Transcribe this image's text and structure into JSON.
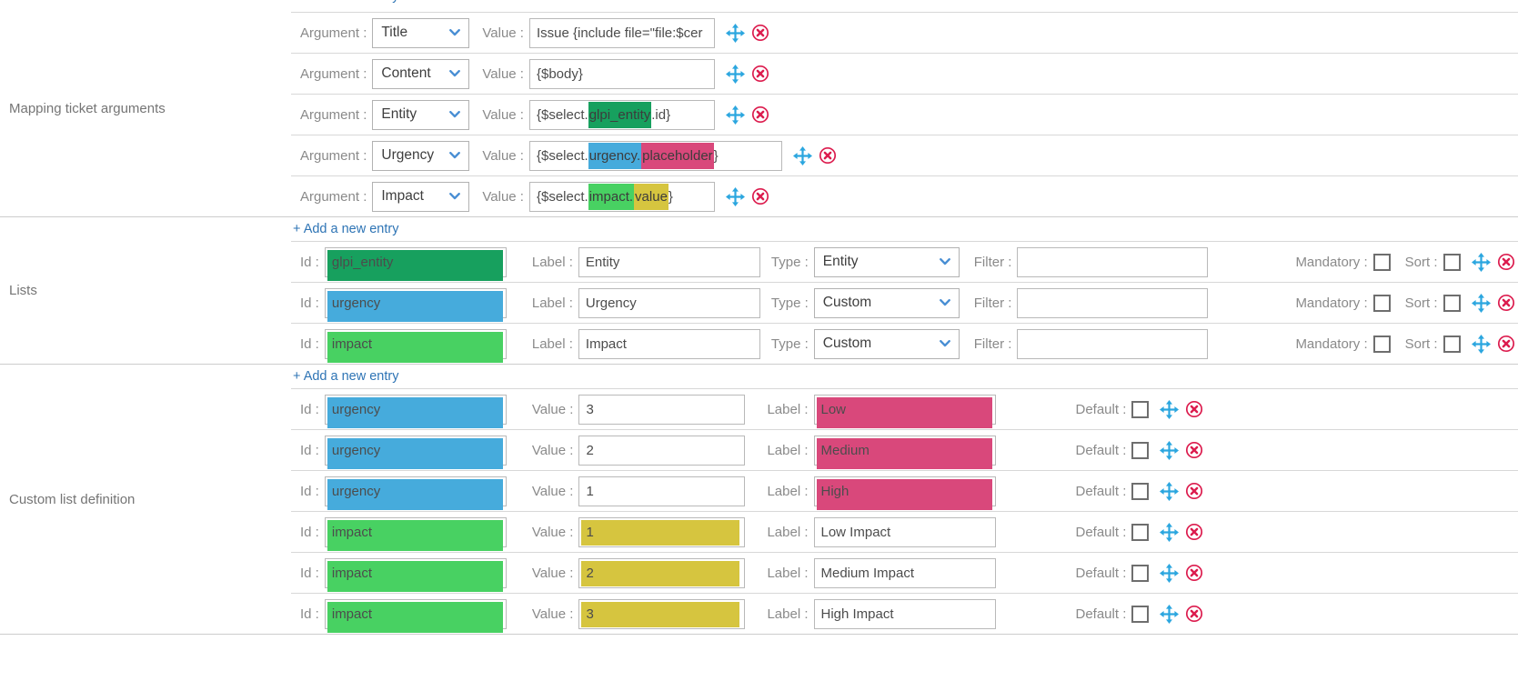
{
  "colors": {
    "green_dark": "#17A05E",
    "blue": "#46ABDC",
    "green_light": "#48D162",
    "pink": "#D9487B",
    "yellow": "#D6C53F",
    "link": "#2E74B5",
    "move_icon": "#2BA6DF",
    "delete_icon": "#DC1C4E",
    "chevron": "#4A8FD4"
  },
  "labels": {
    "argument": "Argument :",
    "value": "Value :",
    "id": "Id :",
    "label": "Label :",
    "type": "Type :",
    "filter": "Filter :",
    "mandatory": "Mandatory :",
    "sort": "Sort :",
    "default": "Default :",
    "add_entry": "+ Add a new entry"
  },
  "sections": {
    "mapping": {
      "title": "Mapping ticket arguments",
      "rows": [
        {
          "argument": "Title",
          "wide": false,
          "segments": [
            {
              "text": "Issue {include file=\"file:$cer",
              "hl": null
            }
          ]
        },
        {
          "argument": "Content",
          "wide": false,
          "segments": [
            {
              "text": "{$body}",
              "hl": null
            }
          ]
        },
        {
          "argument": "Entity",
          "wide": false,
          "segments": [
            {
              "text": "{$select.",
              "hl": null
            },
            {
              "text": "glpi_entity",
              "hl": "green_dark"
            },
            {
              "text": ".id}",
              "hl": null
            }
          ]
        },
        {
          "argument": "Urgency",
          "wide": true,
          "segments": [
            {
              "text": "{$select.",
              "hl": null
            },
            {
              "text": "urgency.",
              "hl": "blue"
            },
            {
              "text": "placeholder",
              "hl": "pink"
            },
            {
              "text": "}",
              "hl": null
            }
          ]
        },
        {
          "argument": "Impact",
          "wide": false,
          "segments": [
            {
              "text": "{$select.",
              "hl": null
            },
            {
              "text": "impact.",
              "hl": "green_light"
            },
            {
              "text": "value",
              "hl": "yellow"
            },
            {
              "text": "}",
              "hl": null
            }
          ]
        }
      ]
    },
    "lists": {
      "title": "Lists",
      "rows": [
        {
          "id": "glpi_entity",
          "id_hl": "green_dark",
          "label": "Entity",
          "type": "Entity",
          "filter": "",
          "mandatory": false,
          "sort": false
        },
        {
          "id": "urgency",
          "id_hl": "blue",
          "label": "Urgency",
          "type": "Custom",
          "filter": "",
          "mandatory": false,
          "sort": false
        },
        {
          "id": "impact",
          "id_hl": "green_light",
          "label": "Impact",
          "type": "Custom",
          "filter": "",
          "mandatory": false,
          "sort": false
        }
      ]
    },
    "custom": {
      "title": "Custom list definition",
      "rows": [
        {
          "id": "urgency",
          "id_hl": "blue",
          "value": "3",
          "value_hl": null,
          "label": "Low",
          "label_hl": "pink",
          "default": false
        },
        {
          "id": "urgency",
          "id_hl": "blue",
          "value": "2",
          "value_hl": null,
          "label": "Medium",
          "label_hl": "pink",
          "default": false
        },
        {
          "id": "urgency",
          "id_hl": "blue",
          "value": "1",
          "value_hl": null,
          "label": "High",
          "label_hl": "pink",
          "default": false
        },
        {
          "id": "impact",
          "id_hl": "green_light",
          "value": "1",
          "value_hl": "yellow",
          "label": "Low Impact",
          "label_hl": null,
          "default": false
        },
        {
          "id": "impact",
          "id_hl": "green_light",
          "value": "2",
          "value_hl": "yellow",
          "label": "Medium Impact",
          "label_hl": null,
          "default": false
        },
        {
          "id": "impact",
          "id_hl": "green_light",
          "value": "3",
          "value_hl": "yellow",
          "label": "High Impact",
          "label_hl": null,
          "default": false
        }
      ]
    }
  }
}
